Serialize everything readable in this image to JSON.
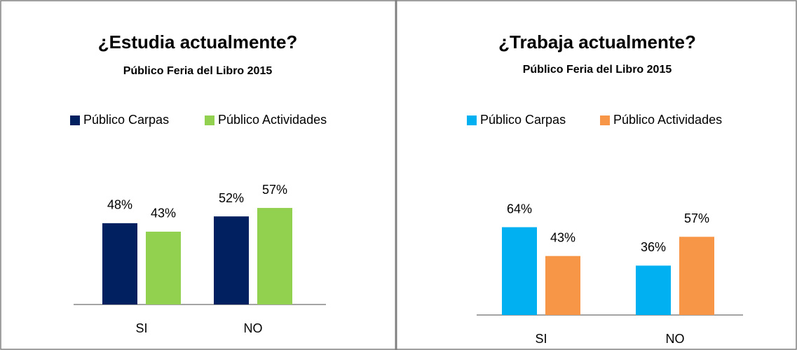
{
  "chart_data": [
    {
      "type": "bar",
      "title": "¿Estudia actualmente?",
      "subtitle": "Público Feria del Libro 2015",
      "categories": [
        "SI",
        "NO"
      ],
      "series": [
        {
          "name": "Público Carpas",
          "color": "#002060",
          "values": [
            48,
            52
          ],
          "value_labels": [
            "48%",
            "52%"
          ]
        },
        {
          "name": "Público Actividades",
          "color": "#92d050",
          "values": [
            43,
            57
          ],
          "value_labels": [
            "43%",
            "57%"
          ]
        }
      ]
    },
    {
      "type": "bar",
      "title": "¿Trabaja actualmente?",
      "subtitle": "Público Feria del Libro 2015",
      "categories": [
        "SI",
        "NO"
      ],
      "series": [
        {
          "name": "Público Carpas",
          "color": "#00b0f0",
          "values": [
            64,
            36
          ],
          "value_labels": [
            "64%",
            "36%"
          ]
        },
        {
          "name": "Público Actividades",
          "color": "#f79646",
          "values": [
            43,
            57
          ],
          "value_labels": [
            "43%",
            "57%"
          ]
        }
      ]
    }
  ]
}
